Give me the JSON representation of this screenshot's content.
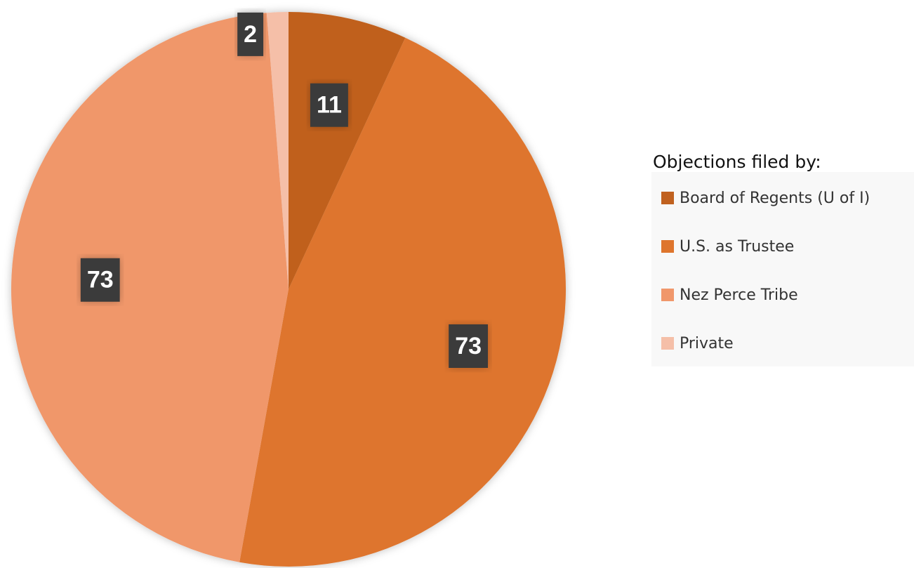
{
  "chart_data": {
    "type": "pie",
    "legend_title": "Objections filed by:",
    "categories": [
      "Board of Regents (U of I)",
      "U.S. as Trustee",
      "Nez Perce Tribe",
      "Private"
    ],
    "values": [
      11,
      73,
      73,
      2
    ],
    "colors": [
      "#c0611f",
      "#de752d",
      "#f0976b",
      "#f5bfa8"
    ],
    "legend": "right"
  }
}
